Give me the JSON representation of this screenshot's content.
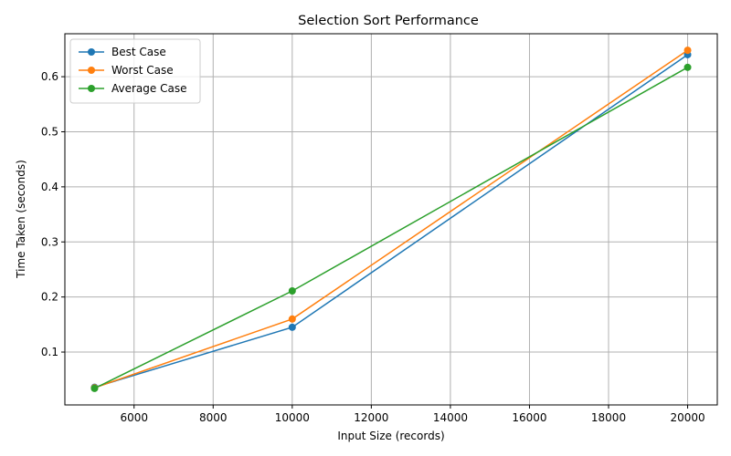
{
  "chart_data": {
    "type": "line",
    "title": "Selection Sort Performance",
    "xlabel": "Input Size (records)",
    "ylabel": "Time Taken (seconds)",
    "xlim": [
      4250,
      20750
    ],
    "ylim": [
      0.004,
      0.678
    ],
    "grid": true,
    "legend_position": "top-left",
    "x_ticks": [
      6000,
      8000,
      10000,
      12000,
      14000,
      16000,
      18000,
      20000
    ],
    "y_ticks": [
      0.1,
      0.2,
      0.3,
      0.4,
      0.5,
      0.6
    ],
    "x": [
      5000,
      10000,
      20000
    ],
    "series": [
      {
        "name": "Best Case",
        "color": "#1f77b4",
        "values": [
          0.036,
          0.145,
          0.64
        ]
      },
      {
        "name": "Worst Case",
        "color": "#ff7f0e",
        "values": [
          0.035,
          0.16,
          0.648
        ]
      },
      {
        "name": "Average Case",
        "color": "#2ca02c",
        "values": [
          0.034,
          0.211,
          0.617
        ]
      }
    ]
  }
}
